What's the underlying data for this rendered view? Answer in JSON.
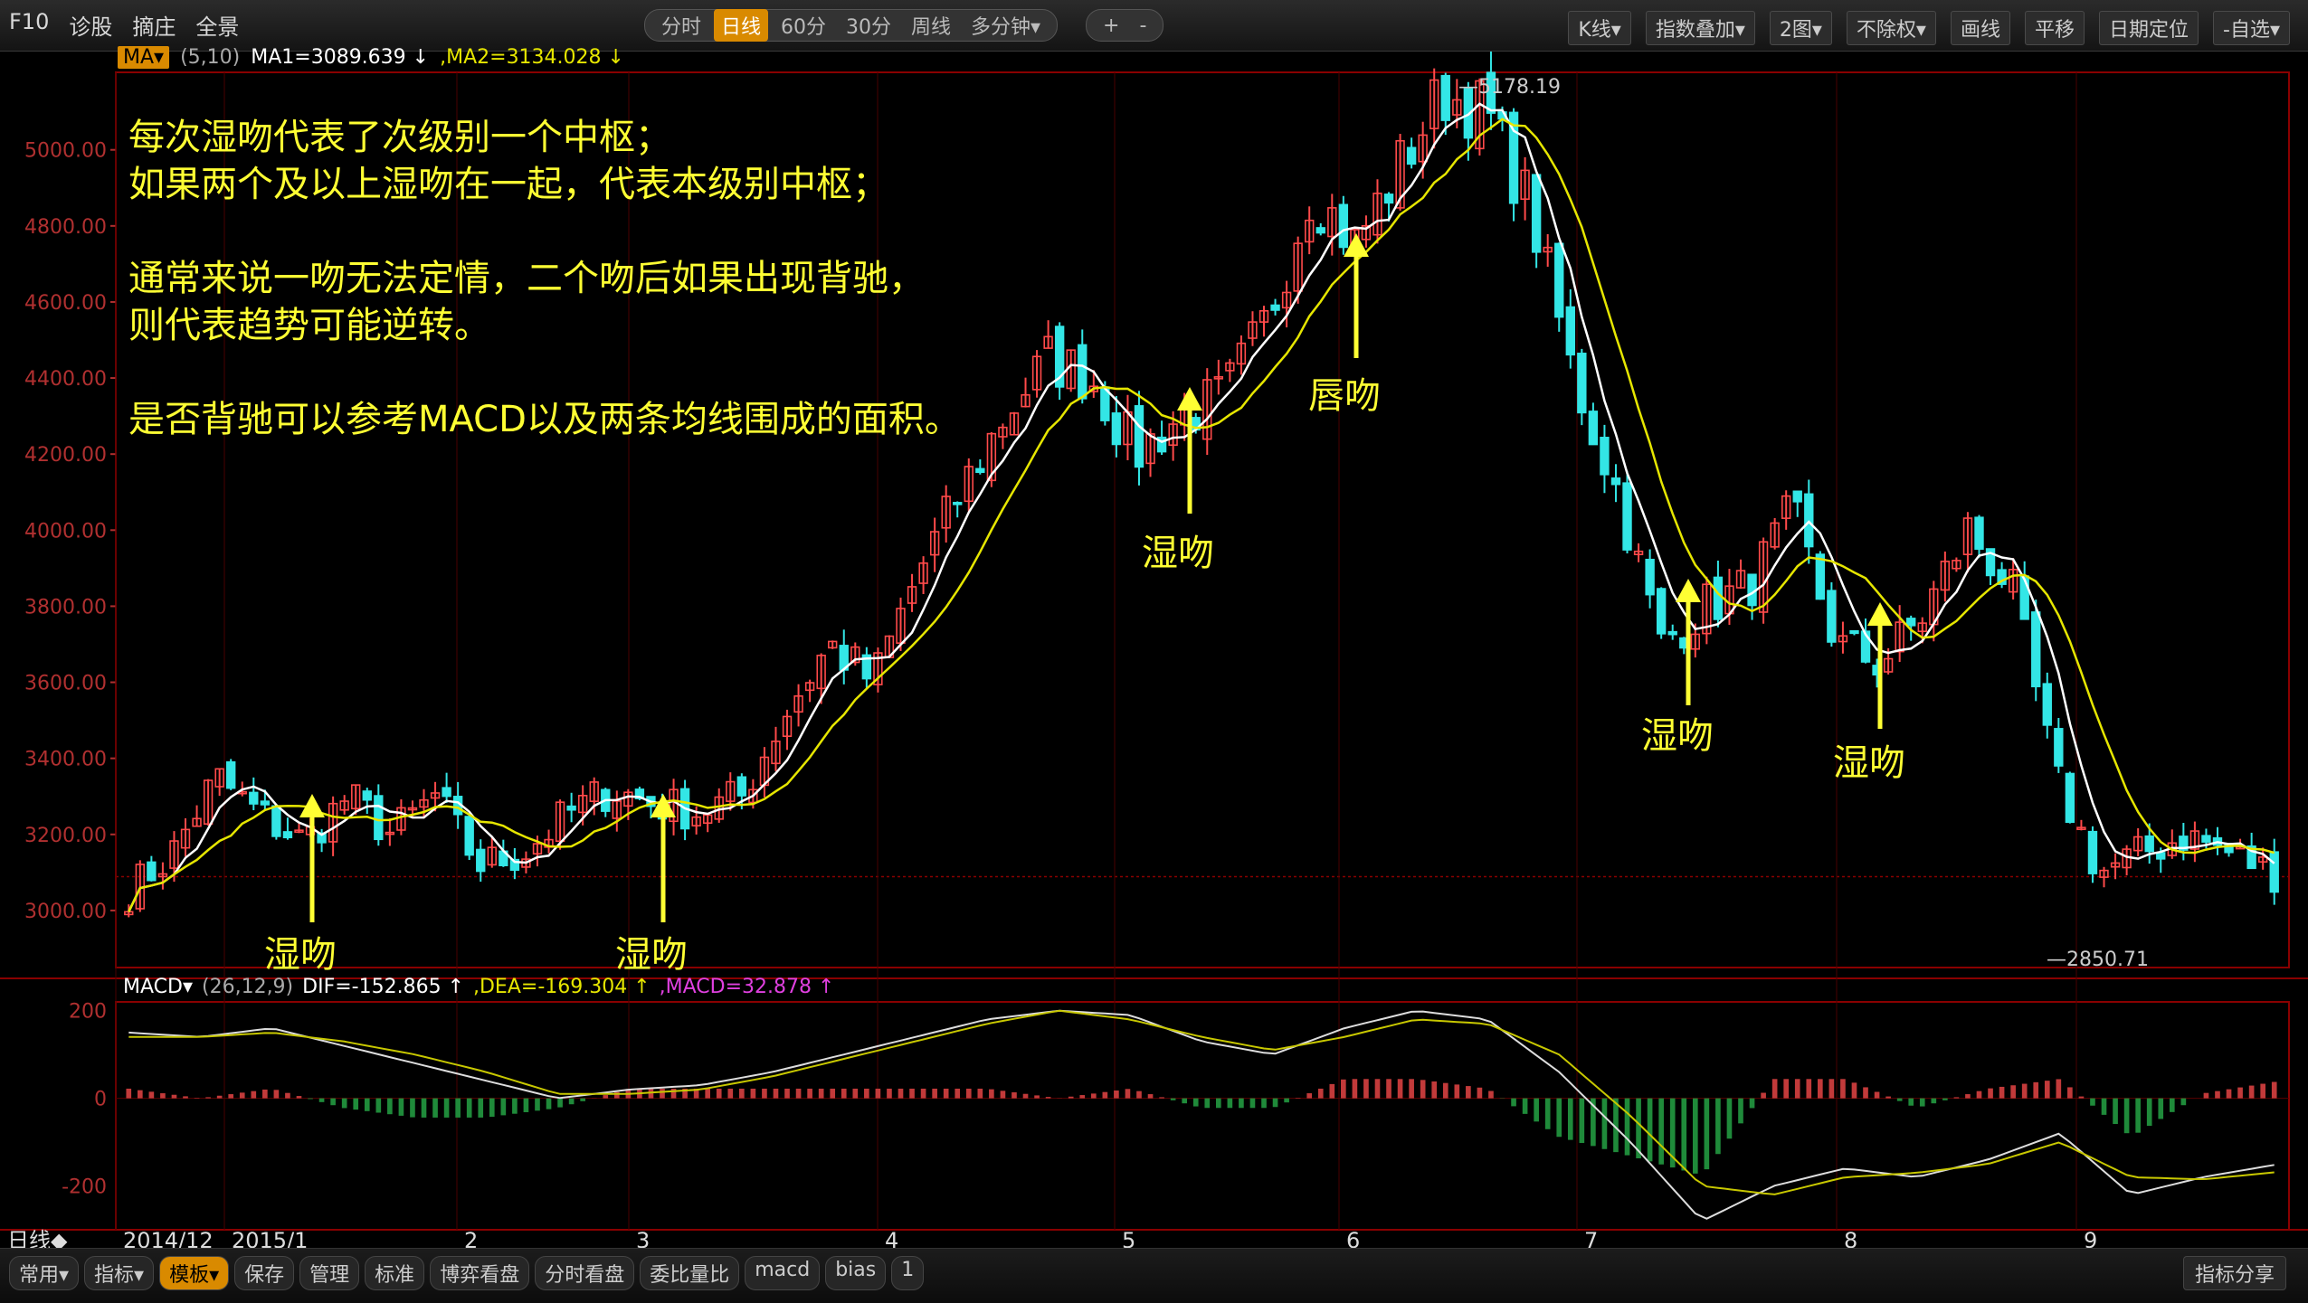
{
  "toolbar": {
    "left_items": [
      "F10",
      "诊股",
      "摘庄",
      "全景"
    ],
    "period_tabs": [
      "分时",
      "日线",
      "60分",
      "30分",
      "周线",
      "多分钟▾"
    ],
    "active_period": "日线",
    "zoom": [
      "+",
      "-"
    ],
    "right_items": [
      "K线▾",
      "指数叠加▾",
      "2图▾",
      "不除权▾",
      "画线",
      "平移",
      "日期定位",
      "-自选▾"
    ]
  },
  "main_header": {
    "badge": "MA▾",
    "params": "(5,10)",
    "ma1": "MA1=3089.639 ↓",
    "ma2": ",MA2=3134.028 ↓"
  },
  "macd_header": {
    "name": "MACD▾",
    "params": "(26,12,9)",
    "dif": "DIF=-152.865 ↑",
    "dea": ",DEA=-169.304 ↑",
    "macd": ",MACD=32.878 ↑"
  },
  "notes": [
    "每次湿吻代表了次级别一个中枢；",
    "如果两个及以上湿吻在一起，代表本级别中枢；",
    "",
    "通常来说一吻无法定情，二个吻后如果出现背驰，",
    "则代表趋势可能逆转。",
    "",
    "是否背驰可以参考MACD以及两条均线围成的面积。"
  ],
  "annotations": [
    "湿吻",
    "湿吻",
    "湿吻",
    "唇吻",
    "湿吻",
    "湿吻"
  ],
  "bottom": {
    "period_label": "日线◆",
    "tabs": [
      "常用▾",
      "指标▾",
      "模板▾",
      "保存",
      "管理",
      "标准",
      "博弈看盘",
      "分时看盘",
      "委比量比",
      "macd",
      "bias",
      "1"
    ],
    "active_tab": "模板▾",
    "share": "指标分享"
  },
  "colors": {
    "up": "#ff4a4a",
    "down": "#33e6e6",
    "ma1": "#ffffff",
    "ma2": "#e6e600",
    "grid": "#6b0000",
    "axis_text": "#b03030",
    "annotation": "#ffff33"
  },
  "chart_data": {
    "type": "candlestick",
    "price_axis": {
      "ylim": [
        2850,
        5180
      ],
      "ticks": [
        "5000.00",
        "4800.00",
        "4600.00",
        "4400.00",
        "4200.00",
        "4000.00",
        "3800.00",
        "3600.00",
        "3400.00",
        "3200.00",
        "3000.00"
      ]
    },
    "price_marks": {
      "high": "5178.19",
      "low": "2850.71"
    },
    "x_ticks": [
      "2014/12",
      "2015/1",
      "2",
      "3",
      "4",
      "5",
      "6",
      "7",
      "8",
      "9"
    ],
    "ma_labels": [
      "MA1",
      "MA2"
    ],
    "macd_axis": {
      "ylim": [
        -300,
        220
      ],
      "ticks": [
        "200",
        "0",
        "-200"
      ]
    },
    "anchors_close": [
      3050,
      3150,
      3350,
      3250,
      3180,
      3300,
      3200,
      3300,
      3120,
      3150,
      3250,
      3320,
      3280,
      3260,
      3300,
      3520,
      3700,
      3600,
      3880,
      4100,
      4300,
      4450,
      4400,
      4200,
      4300,
      4350,
      4550,
      4900,
      4750,
      4950,
      5150,
      5100,
      4850,
      4400,
      4100,
      3700,
      3800,
      3850,
      4050,
      3700,
      3650,
      3780,
      4000,
      3850,
      3350,
      3100,
      3150,
      3200,
      3150,
      3100
    ],
    "macd_dif_anchors": [
      150,
      140,
      160,
      120,
      80,
      40,
      0,
      20,
      30,
      60,
      100,
      140,
      180,
      200,
      190,
      130,
      100,
      160,
      200,
      180,
      60,
      -100,
      -280,
      -200,
      -160,
      -180,
      -140,
      -80,
      -220,
      -180,
      -152
    ],
    "macd_dea_anchors": [
      140,
      140,
      150,
      130,
      100,
      60,
      10,
      10,
      20,
      50,
      90,
      130,
      170,
      200,
      180,
      140,
      110,
      140,
      180,
      170,
      100,
      -40,
      -200,
      -220,
      -180,
      -170,
      -150,
      -100,
      -180,
      -185,
      -169
    ]
  }
}
